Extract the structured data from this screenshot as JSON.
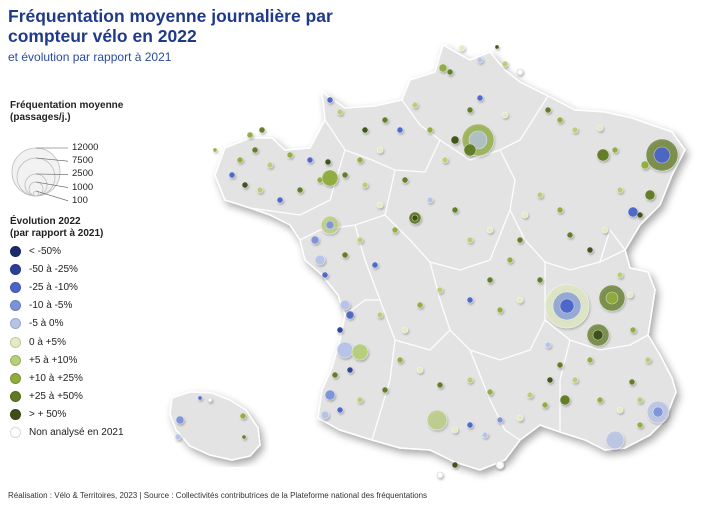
{
  "title": "Fréquentation moyenne journalière par compteur vélo en 2022",
  "subtitle": "et évolution par rapport à 2021",
  "size_legend": {
    "title_line1": "Fréquentation moyenne",
    "title_line2": "(passages/j.)",
    "values": [
      "12000",
      "7500",
      "2500",
      "1000",
      "100"
    ]
  },
  "color_legend": {
    "title_line1": "Évolution 2022",
    "title_line2": "(par rapport à 2021)",
    "items": [
      {
        "label": "< -50%",
        "color": "#1b2a6b"
      },
      {
        "label": "-50 à -25%",
        "color": "#2d3f95"
      },
      {
        "label": "-25 à -10%",
        "color": "#4a65c8"
      },
      {
        "label": "-10 à -5%",
        "color": "#7b93d8"
      },
      {
        "label": "-5 à 0%",
        "color": "#b6c4ea"
      },
      {
        "label": "0 à +5%",
        "color": "#e3ecc3"
      },
      {
        "label": "+5 à +10%",
        "color": "#b7cf7a"
      },
      {
        "label": "+10 à +25%",
        "color": "#8fac3c"
      },
      {
        "label": "+25 à +50%",
        "color": "#5f7a24"
      },
      {
        "label": "> + 50%",
        "color": "#3c4f16"
      },
      {
        "label": "Non analysé en 2021",
        "color": "#ffffff"
      }
    ]
  },
  "footer": "Réalisation : Vélo & Territoires, 2023 | Source : Collectivités contributrices de la Plateforme national des fréquentations"
}
